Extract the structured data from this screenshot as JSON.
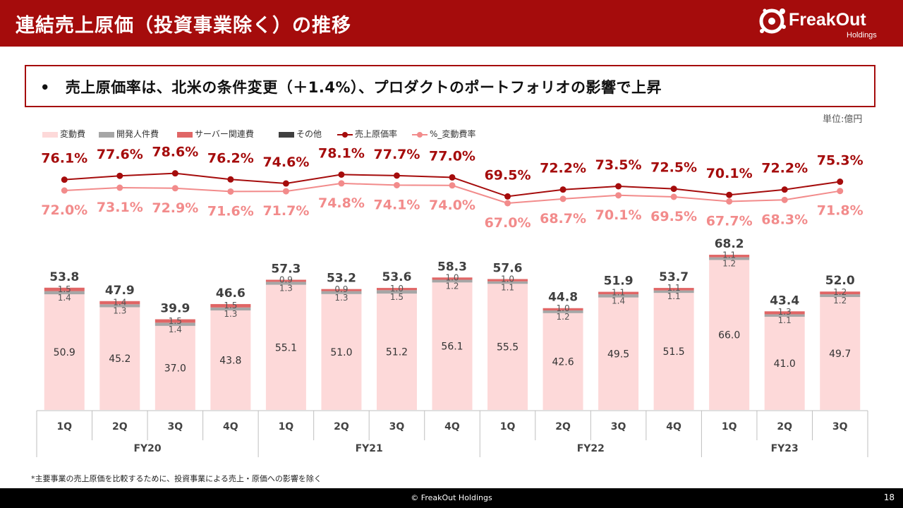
{
  "header": {
    "title": "連結売上原価（投資事業除く）の推移"
  },
  "logo": {
    "name": "FreakOut",
    "sub": "Holdings"
  },
  "callout": {
    "bullet": "•",
    "text": "売上原価率は、北米の条件変更（＋1.4%）、プロダクトのポートフォリオの影響で上昇"
  },
  "unit": "単位:億円",
  "footnote": "*主要事業の売上原価を比較するために、投資事業による売上・原価への影響を除く",
  "footer": {
    "copyright": "© FreakOut Holdings",
    "page": "18"
  },
  "colors": {
    "header": "#a50c0c",
    "variable": "#fdd9d9",
    "dev": "#a6a6a6",
    "server": "#e06666",
    "other": "#404040",
    "cogs_line": "#a50c0c",
    "var_line": "#f28b8b"
  },
  "chart_data": {
    "type": "bar",
    "stacked": true,
    "legend": [
      {
        "name": "変動費",
        "kind": "bar",
        "color": "#fdd9d9"
      },
      {
        "name": "開発人件費",
        "kind": "bar",
        "color": "#a6a6a6"
      },
      {
        "name": "サーバー関連費",
        "kind": "bar",
        "color": "#e06666"
      },
      {
        "name": "その他",
        "kind": "bar",
        "color": "#404040"
      },
      {
        "name": "売上原価率",
        "kind": "line",
        "color": "#a50c0c"
      },
      {
        "name": "%_変動費率",
        "kind": "line",
        "color": "#f28b8b"
      }
    ],
    "categories": [
      "1Q",
      "2Q",
      "3Q",
      "4Q",
      "1Q",
      "2Q",
      "3Q",
      "4Q",
      "1Q",
      "2Q",
      "3Q",
      "4Q",
      "1Q",
      "2Q",
      "3Q"
    ],
    "groups": [
      {
        "label": "FY20",
        "count": 4
      },
      {
        "label": "FY21",
        "count": 4
      },
      {
        "label": "FY22",
        "count": 4
      },
      {
        "label": "FY23",
        "count": 3
      }
    ],
    "series": [
      {
        "name": "変動費",
        "values": [
          50.9,
          45.2,
          37.0,
          43.8,
          55.1,
          51.0,
          51.2,
          56.1,
          55.5,
          42.6,
          49.5,
          51.5,
          66.0,
          41.0,
          49.7
        ],
        "labels": [
          "50.9",
          "45.2",
          "37.0",
          "43.8",
          "55.1",
          "51.0",
          "51.2",
          "56.1",
          "55.5",
          "42.6",
          "49.5",
          "51.5",
          "66.0",
          "41.0",
          "49.7"
        ]
      },
      {
        "name": "開発人件費",
        "values": [
          1.4,
          1.3,
          1.4,
          1.3,
          1.3,
          1.3,
          1.5,
          1.2,
          1.1,
          1.2,
          1.4,
          1.1,
          1.2,
          1.1,
          1.2
        ],
        "labels": [
          "1.4",
          "1.3",
          "1.4",
          "1.3",
          "1.3",
          "1.3",
          "1.5",
          "1.2",
          "1.1",
          "1.2",
          "1.4",
          "1.1",
          "1.2",
          "1.1",
          "1.2"
        ]
      },
      {
        "name": "サーバー関連費",
        "values": [
          1.5,
          1.4,
          1.5,
          1.5,
          0.9,
          0.9,
          1.0,
          1.0,
          1.0,
          1.0,
          1.1,
          1.1,
          1.1,
          1.3,
          1.2
        ],
        "labels": [
          "1.5",
          "1.4",
          "1.5",
          "1.5",
          "0.9",
          "0.9",
          "1.0",
          "1.0",
          "1.0",
          "1.0",
          "1.1",
          "1.1",
          "1.1",
          "1.3",
          "1.2"
        ]
      },
      {
        "name": "その他",
        "values": [
          0.0,
          0.0,
          0.0,
          0.0,
          0.0,
          0.0,
          0.0,
          0.0,
          0.0,
          0.0,
          0.0,
          0.0,
          0.0,
          0.0,
          0.0
        ]
      }
    ],
    "totals": [
      "53.8",
      "47.9",
      "39.9",
      "46.6",
      "57.3",
      "53.2",
      "53.6",
      "58.3",
      "57.6",
      "44.8",
      "51.9",
      "53.7",
      "68.2",
      "43.4",
      "52.0"
    ],
    "total_values": [
      53.8,
      47.9,
      39.9,
      46.6,
      57.3,
      53.2,
      53.6,
      58.3,
      57.6,
      44.8,
      51.9,
      53.7,
      68.2,
      43.4,
      52.0
    ],
    "lines": [
      {
        "name": "売上原価率",
        "values": [
          76.1,
          77.6,
          78.6,
          76.2,
          74.6,
          78.1,
          77.7,
          77.0,
          69.5,
          72.2,
          73.5,
          72.5,
          70.1,
          72.2,
          75.3
        ],
        "labels": [
          "76.1%",
          "77.6%",
          "78.6%",
          "76.2%",
          "74.6%",
          "78.1%",
          "77.7%",
          "77.0%",
          "69.5%",
          "72.2%",
          "73.5%",
          "72.5%",
          "70.1%",
          "72.2%",
          "75.3%"
        ]
      },
      {
        "name": "%_変動費率",
        "values": [
          72.0,
          73.1,
          72.9,
          71.6,
          71.7,
          74.8,
          74.1,
          74.0,
          67.0,
          68.7,
          70.1,
          69.5,
          67.7,
          68.3,
          71.8
        ],
        "labels": [
          "72.0%",
          "73.1%",
          "72.9%",
          "71.6%",
          "71.7%",
          "74.8%",
          "74.1%",
          "74.0%",
          "67.0%",
          "68.7%",
          "70.1%",
          "69.5%",
          "67.7%",
          "68.3%",
          "71.8%"
        ]
      }
    ],
    "unit": "億円"
  }
}
